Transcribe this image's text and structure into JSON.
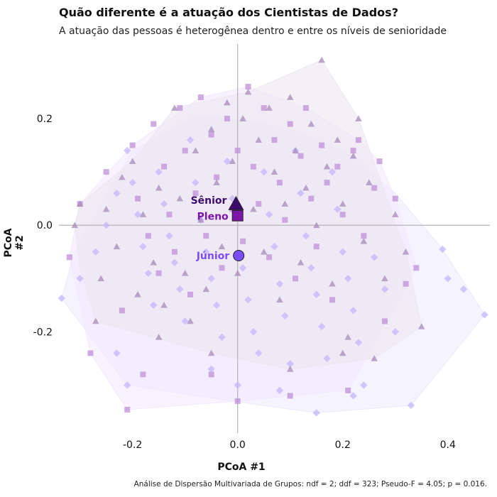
{
  "chart_data": {
    "type": "scatter",
    "title": "Quão diferente é a atuação dos Cientistas de Dados?",
    "subtitle": "A atuação das pessoas é heterogênea dentro e entre os níveis de senioridade",
    "xlabel": "PCoA #1",
    "ylabel": "PCoA #2",
    "xlim": [
      -0.34,
      0.48
    ],
    "ylim": [
      -0.39,
      0.34
    ],
    "xticks": [
      "-0.2",
      "0.0",
      "0.2",
      "0.4"
    ],
    "xtick_values": [
      -0.2,
      0.0,
      0.2,
      0.4
    ],
    "yticks": [
      "0.2",
      "0.0",
      "-0.2"
    ],
    "ytick_values": [
      0.2,
      0.0,
      -0.2
    ],
    "grid": false,
    "legend": "none",
    "caption": "Análise de Dispersão Multivariada de Grupos: ndf = 2; ddf = 323; Pseudo-F = 4.05; p = 0.016.",
    "series": [
      {
        "name": "Júnior",
        "marker": "diamond",
        "color": "#c4b5fd",
        "hull_color": "#ede9fe",
        "centroid_color": "#7c4dff",
        "centroid_marker": "circle",
        "centroid": [
          0.002,
          -0.057
        ],
        "hull": [
          [
            -0.335,
            -0.137
          ],
          [
            -0.31,
            -0.05
          ],
          [
            -0.2,
            0.14
          ],
          [
            -0.09,
            0.2
          ],
          [
            0.0,
            0.2
          ],
          [
            0.1,
            0.18
          ],
          [
            0.2,
            0.14
          ],
          [
            0.3,
            0.06
          ],
          [
            0.39,
            -0.045
          ],
          [
            0.47,
            -0.168
          ],
          [
            0.33,
            -0.338
          ],
          [
            0.15,
            -0.352
          ],
          [
            -0.01,
            -0.33
          ],
          [
            -0.21,
            -0.3
          ]
        ],
        "points": [
          [
            -0.335,
            -0.137
          ],
          [
            -0.3,
            -0.1
          ],
          [
            -0.27,
            -0.05
          ],
          [
            -0.25,
            0.0
          ],
          [
            -0.23,
            0.06
          ],
          [
            -0.21,
            0.14
          ],
          [
            -0.2,
            0.08
          ],
          [
            -0.19,
            0.02
          ],
          [
            -0.18,
            -0.04
          ],
          [
            -0.17,
            -0.09
          ],
          [
            -0.16,
            -0.15
          ],
          [
            -0.15,
            0.1
          ],
          [
            -0.14,
            0.04
          ],
          [
            -0.13,
            -0.02
          ],
          [
            -0.12,
            -0.07
          ],
          [
            -0.11,
            -0.12
          ],
          [
            -0.1,
            -0.18
          ],
          [
            -0.09,
            0.16
          ],
          [
            -0.08,
            0.08
          ],
          [
            -0.07,
            0.01
          ],
          [
            -0.06,
            -0.05
          ],
          [
            -0.05,
            -0.1
          ],
          [
            -0.04,
            -0.15
          ],
          [
            -0.03,
            -0.21
          ],
          [
            -0.02,
            0.12
          ],
          [
            -0.01,
            0.05
          ],
          [
            0.0,
            -0.3
          ],
          [
            0.01,
            -0.08
          ],
          [
            0.02,
            -0.14
          ],
          [
            0.03,
            -0.2
          ],
          [
            0.04,
            -0.24
          ],
          [
            0.05,
            0.1
          ],
          [
            0.06,
            0.02
          ],
          [
            0.07,
            -0.04
          ],
          [
            0.08,
            -0.11
          ],
          [
            0.09,
            -0.17
          ],
          [
            0.1,
            -0.26
          ],
          [
            0.11,
            0.14
          ],
          [
            0.12,
            0.06
          ],
          [
            0.13,
            -0.02
          ],
          [
            0.14,
            -0.08
          ],
          [
            0.15,
            -0.13
          ],
          [
            0.16,
            -0.19
          ],
          [
            0.17,
            -0.25
          ],
          [
            0.18,
            0.1
          ],
          [
            0.19,
            0.03
          ],
          [
            0.2,
            -0.05
          ],
          [
            0.21,
            -0.1
          ],
          [
            0.22,
            -0.16
          ],
          [
            0.23,
            -0.22
          ],
          [
            0.24,
            -0.3
          ],
          [
            0.26,
            -0.06
          ],
          [
            0.28,
            -0.12
          ],
          [
            0.3,
            -0.2
          ],
          [
            0.33,
            -0.338
          ],
          [
            0.39,
            -0.045
          ],
          [
            0.4,
            -0.1
          ],
          [
            0.43,
            -0.12
          ],
          [
            0.47,
            -0.168
          ],
          [
            -0.21,
            -0.3
          ],
          [
            -0.23,
            -0.24
          ],
          [
            0.15,
            -0.352
          ],
          [
            0.22,
            -0.32
          ],
          [
            0.08,
            -0.31
          ],
          [
            -0.05,
            -0.27
          ]
        ]
      },
      {
        "name": "Pleno",
        "marker": "square",
        "color": "#c08fd8",
        "hull_color": "#f3e8ff",
        "centroid_color": "#7b16a8",
        "centroid_marker": "square",
        "centroid": [
          0.0,
          0.018
        ],
        "hull": [
          [
            -0.32,
            -0.06
          ],
          [
            -0.3,
            0.04
          ],
          [
            -0.2,
            0.15
          ],
          [
            -0.07,
            0.24
          ],
          [
            0.02,
            0.26
          ],
          [
            0.13,
            0.22
          ],
          [
            0.23,
            0.16
          ],
          [
            0.27,
            0.12
          ],
          [
            0.3,
            0.05
          ],
          [
            0.34,
            -0.08
          ],
          [
            0.21,
            -0.31
          ],
          [
            0.1,
            -0.32
          ],
          [
            0.0,
            -0.33
          ],
          [
            -0.21,
            -0.346
          ],
          [
            -0.28,
            -0.24
          ]
        ],
        "points": [
          [
            -0.32,
            -0.06
          ],
          [
            -0.3,
            0.04
          ],
          [
            -0.28,
            -0.24
          ],
          [
            -0.25,
            0.1
          ],
          [
            -0.22,
            -0.16
          ],
          [
            -0.21,
            -0.346
          ],
          [
            -0.2,
            0.15
          ],
          [
            -0.19,
            0.05
          ],
          [
            -0.17,
            -0.02
          ],
          [
            -0.16,
            0.19
          ],
          [
            -0.15,
            -0.09
          ],
          [
            -0.14,
            0.11
          ],
          [
            -0.13,
            0.02
          ],
          [
            -0.12,
            -0.05
          ],
          [
            -0.11,
            0.22
          ],
          [
            -0.1,
            0.14
          ],
          [
            -0.09,
            -0.13
          ],
          [
            -0.08,
            0.06
          ],
          [
            -0.07,
            0.24
          ],
          [
            -0.06,
            -0.02
          ],
          [
            -0.05,
            0.17
          ],
          [
            -0.04,
            0.09
          ],
          [
            -0.03,
            -0.08
          ],
          [
            -0.02,
            0.2
          ],
          [
            -0.01,
            0.03
          ],
          [
            0.0,
            0.14
          ],
          [
            0.01,
            -0.03
          ],
          [
            0.02,
            0.26
          ],
          [
            0.03,
            0.11
          ],
          [
            0.04,
            0.04
          ],
          [
            0.05,
            0.22
          ],
          [
            0.06,
            -0.06
          ],
          [
            0.07,
            0.16
          ],
          [
            0.08,
            0.08
          ],
          [
            0.09,
            0.01
          ],
          [
            0.1,
            0.19
          ],
          [
            0.11,
            -0.1
          ],
          [
            0.12,
            0.13
          ],
          [
            0.13,
            0.22
          ],
          [
            0.14,
            0.05
          ],
          [
            0.15,
            -0.04
          ],
          [
            0.16,
            0.15
          ],
          [
            0.17,
            0.08
          ],
          [
            0.18,
            -0.14
          ],
          [
            0.19,
            0.11
          ],
          [
            0.2,
            0.02
          ],
          [
            0.21,
            -0.31
          ],
          [
            0.22,
            0.14
          ],
          [
            0.23,
            0.16
          ],
          [
            0.24,
            -0.02
          ],
          [
            0.26,
            0.07
          ],
          [
            0.27,
            0.12
          ],
          [
            0.28,
            -0.18
          ],
          [
            0.3,
            0.05
          ],
          [
            0.32,
            -0.11
          ],
          [
            0.34,
            -0.08
          ],
          [
            0.1,
            -0.32
          ],
          [
            0.0,
            -0.33
          ],
          [
            -0.05,
            -0.28
          ],
          [
            -0.18,
            -0.28
          ]
        ]
      },
      {
        "name": "Sênior",
        "marker": "triangle",
        "color": "#a78bba",
        "hull_color": "#ebe6ef",
        "centroid_color": "#3d0a6e",
        "centroid_marker": "triangle",
        "centroid": [
          -0.003,
          0.04
        ],
        "hull": [
          [
            -0.31,
            0.0
          ],
          [
            -0.3,
            0.04
          ],
          [
            -0.2,
            0.12
          ],
          [
            -0.12,
            0.22
          ],
          [
            0.02,
            0.25
          ],
          [
            0.16,
            0.31
          ],
          [
            0.23,
            0.2
          ],
          [
            0.32,
            -0.05
          ],
          [
            0.35,
            -0.19
          ],
          [
            0.26,
            -0.25
          ],
          [
            0.1,
            -0.27
          ],
          [
            -0.05,
            -0.24
          ],
          [
            -0.27,
            -0.18
          ],
          [
            -0.3,
            -0.08
          ]
        ],
        "points": [
          [
            -0.31,
            0.0
          ],
          [
            -0.3,
            0.04
          ],
          [
            -0.27,
            -0.18
          ],
          [
            -0.26,
            -0.1
          ],
          [
            -0.25,
            0.03
          ],
          [
            -0.23,
            -0.04
          ],
          [
            -0.22,
            0.09
          ],
          [
            -0.2,
            0.12
          ],
          [
            -0.19,
            -0.13
          ],
          [
            -0.18,
            0.02
          ],
          [
            -0.16,
            -0.07
          ],
          [
            -0.15,
            0.07
          ],
          [
            -0.14,
            -0.15
          ],
          [
            -0.12,
            0.22
          ],
          [
            -0.11,
            0.05
          ],
          [
            -0.1,
            -0.09
          ],
          [
            -0.09,
            -0.18
          ],
          [
            -0.08,
            0.14
          ],
          [
            -0.07,
            0.01
          ],
          [
            -0.06,
            -0.12
          ],
          [
            -0.05,
            0.18
          ],
          [
            -0.04,
            0.08
          ],
          [
            -0.03,
            -0.04
          ],
          [
            -0.02,
            0.23
          ],
          [
            -0.01,
            0.12
          ],
          [
            0.0,
            -0.09
          ],
          [
            0.01,
            0.2
          ],
          [
            0.02,
            0.25
          ],
          [
            0.03,
            0.03
          ],
          [
            0.04,
            0.16
          ],
          [
            0.05,
            -0.05
          ],
          [
            0.06,
            0.22
          ],
          [
            0.07,
            0.1
          ],
          [
            0.08,
            -0.14
          ],
          [
            0.09,
            0.04
          ],
          [
            0.1,
            0.24
          ],
          [
            0.11,
            0.14
          ],
          [
            0.12,
            -0.07
          ],
          [
            0.13,
            0.07
          ],
          [
            0.14,
            0.19
          ],
          [
            0.15,
            0.0
          ],
          [
            0.16,
            0.31
          ],
          [
            0.17,
            0.11
          ],
          [
            0.18,
            -0.11
          ],
          [
            0.19,
            0.16
          ],
          [
            0.2,
            0.04
          ],
          [
            0.21,
            -0.21
          ],
          [
            0.22,
            0.13
          ],
          [
            0.23,
            0.2
          ],
          [
            0.24,
            -0.03
          ],
          [
            0.25,
            0.08
          ],
          [
            0.26,
            -0.25
          ],
          [
            0.28,
            -0.1
          ],
          [
            0.3,
            0.02
          ],
          [
            0.32,
            -0.05
          ],
          [
            0.35,
            -0.19
          ],
          [
            0.1,
            -0.27
          ],
          [
            -0.05,
            -0.24
          ],
          [
            0.2,
            -0.24
          ],
          [
            -0.15,
            -0.21
          ]
        ]
      }
    ]
  }
}
